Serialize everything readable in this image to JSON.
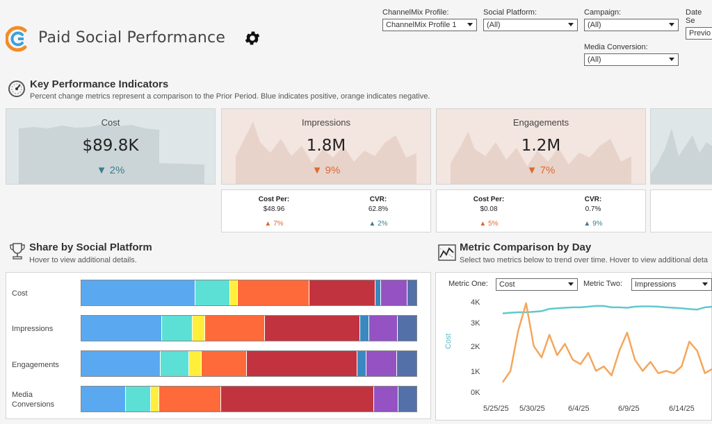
{
  "header": {
    "title": "Paid Social Performance",
    "filters": [
      {
        "label": "ChannelMix Profile:",
        "value": "ChannelMix Profile 1"
      },
      {
        "label": "Social Platform:",
        "value": "(All)"
      },
      {
        "label": "Campaign:",
        "value": "(All)"
      },
      {
        "label": "Date Se",
        "value": "Previo"
      },
      {
        "label": "Media Conversion:",
        "value": "(All)"
      }
    ]
  },
  "kpi": {
    "title": "Key Performance Indicators",
    "subtitle": "Percent change metrics represent a comparison to the Prior Period. Blue indicates positive, orange indicates negative.",
    "cards": [
      {
        "name": "Cost",
        "value": "$89.8K",
        "change": "2%",
        "arrow": "▼",
        "tone": "blue"
      },
      {
        "name": "Impressions",
        "value": "1.8M",
        "change": "9%",
        "arrow": "▼",
        "tone": "orange"
      },
      {
        "name": "Engagements",
        "value": "1.2M",
        "change": "7%",
        "arrow": "▼",
        "tone": "orange"
      }
    ],
    "sub_cards": [
      {
        "left": {
          "label": "Cost Per:",
          "value": "$48.96",
          "arrow": "▲",
          "change": "7%",
          "tone": "orange"
        },
        "right": {
          "label": "CVR:",
          "value": "62.8%",
          "arrow": "▲",
          "change": "2%",
          "tone": "blue"
        }
      },
      {
        "left": {
          "label": "Cost Per:",
          "value": "$0.08",
          "arrow": "▲",
          "change": "5%",
          "tone": "orange"
        },
        "right": {
          "label": "CVR:",
          "value": "0.7%",
          "arrow": "▲",
          "change": "9%",
          "tone": "blue"
        }
      }
    ]
  },
  "share": {
    "title": "Share by Social Platform",
    "subtitle": "Hover to view additional details.",
    "colors": [
      "#5aa9f0",
      "#5ce0d6",
      "#ffee3a",
      "#ff6a3a",
      "#c1343f",
      "#3a88c0",
      "#9452c2",
      "#5470a8"
    ],
    "rows": [
      {
        "label": "Cost",
        "shares": [
          34,
          10.5,
          2.2,
          21.3,
          19.7,
          1.7,
          8,
          2.6
        ]
      },
      {
        "label": "Impressions",
        "shares": [
          24,
          9.3,
          3.7,
          17.8,
          28.5,
          2.5,
          8.7,
          5.5
        ]
      },
      {
        "label": "Engagements",
        "shares": [
          23.6,
          8.5,
          3.7,
          13.6,
          33,
          2.7,
          9,
          5.9
        ]
      },
      {
        "label": "Media\nConversions",
        "shares": [
          13.2,
          7.5,
          2.5,
          18.6,
          45.5,
          0,
          7.4,
          5.3
        ]
      }
    ]
  },
  "metric": {
    "title": "Metric Comparison by Day",
    "subtitle": "Select two metrics below to trend over time. Hover to view additional deta",
    "metric_one_label": "Metric One:",
    "metric_one_value": "Cost",
    "metric_two_label": "Metric Two:",
    "metric_two_value": "Impressions",
    "y_axis_label": "Cost"
  },
  "chart_data": {
    "type": "line",
    "title": "Metric Comparison by Day",
    "ylabel": "Cost",
    "x_ticks": [
      "5/25/25",
      "5/30/25",
      "6/4/25",
      "6/9/25",
      "6/14/25"
    ],
    "y_ticks": [
      "4K",
      "3K",
      "2K",
      "1K",
      "0K"
    ],
    "ylim": [
      0,
      4000
    ],
    "series": [
      {
        "name": "Impressions",
        "color": "#5fc8cf",
        "values": [
          3.55,
          3.58,
          3.6,
          3.6,
          3.62,
          3.65,
          3.75,
          3.78,
          3.8,
          3.82,
          3.82,
          3.85,
          3.88,
          3.88,
          3.82,
          3.82,
          3.8,
          3.85,
          3.86,
          3.86,
          3.85,
          3.82,
          3.8,
          3.78,
          3.74,
          3.72,
          3.82,
          3.85
        ]
      },
      {
        "name": "Cost",
        "color": "#f5a65b",
        "values": [
          0.5,
          1.0,
          2.8,
          4.0,
          2.1,
          1.6,
          2.6,
          1.7,
          2.2,
          1.5,
          1.3,
          1.8,
          1.0,
          1.2,
          0.8,
          1.9,
          2.7,
          1.5,
          1.0,
          1.4,
          0.9,
          1.0,
          0.9,
          1.2,
          2.3,
          1.9,
          0.9,
          1.1
        ]
      }
    ]
  }
}
